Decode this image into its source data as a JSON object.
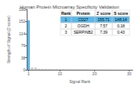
{
  "chart_data": {
    "type": "bar",
    "title": "Human Protein Microarray Specificity Validation",
    "xlabel": "Signal Rank",
    "ylabel": "Strength of Signal (Z score)",
    "x": [
      1,
      2,
      3,
      4,
      5,
      6,
      7,
      8,
      9,
      10,
      11,
      12,
      13,
      14,
      15,
      16,
      17,
      18,
      19,
      20,
      21,
      22,
      23,
      24,
      25,
      26,
      27,
      28,
      29,
      30
    ],
    "values": [
      155.71,
      7.57,
      7.39,
      3.5,
      3.0,
      2.8,
      2.6,
      2.4,
      2.2,
      2.1,
      2.0,
      1.9,
      1.8,
      1.7,
      1.6,
      1.5,
      1.4,
      1.3,
      1.2,
      1.1,
      1.0,
      0.9,
      0.8,
      0.7,
      0.6,
      0.5,
      0.4,
      0.3,
      0.2,
      0.1
    ],
    "colors": [
      "#5bb8e8",
      "#d0cece",
      "#d0cece",
      "#d0cece",
      "#d0cece",
      "#d0cece",
      "#d0cece",
      "#d0cece",
      "#d0cece",
      "#d0cece",
      "#d0cece",
      "#d0cece",
      "#d0cece",
      "#d0cece",
      "#d0cece",
      "#d0cece",
      "#d0cece",
      "#d0cece",
      "#d0cece",
      "#d0cece",
      "#d0cece",
      "#d0cece",
      "#d0cece",
      "#d0cece",
      "#d0cece",
      "#d0cece",
      "#d0cece",
      "#d0cece",
      "#d0cece",
      "#d0cece"
    ],
    "xlim": [
      0.5,
      31
    ],
    "xticks": [
      1,
      10,
      20,
      30
    ],
    "ylim": [
      0,
      190
    ],
    "yticks": [
      0,
      38,
      76,
      114,
      152,
      190
    ],
    "grid": false,
    "table": {
      "headers": [
        "Rank",
        "Protein",
        "Z score",
        "S score"
      ],
      "rows": [
        [
          "1",
          "CD27",
          "155.71",
          "148.14"
        ],
        [
          "2",
          "OGDH",
          "7.57",
          "0.18"
        ],
        [
          "3",
          "SERPINB2",
          "7.39",
          "0.43"
        ]
      ]
    }
  }
}
